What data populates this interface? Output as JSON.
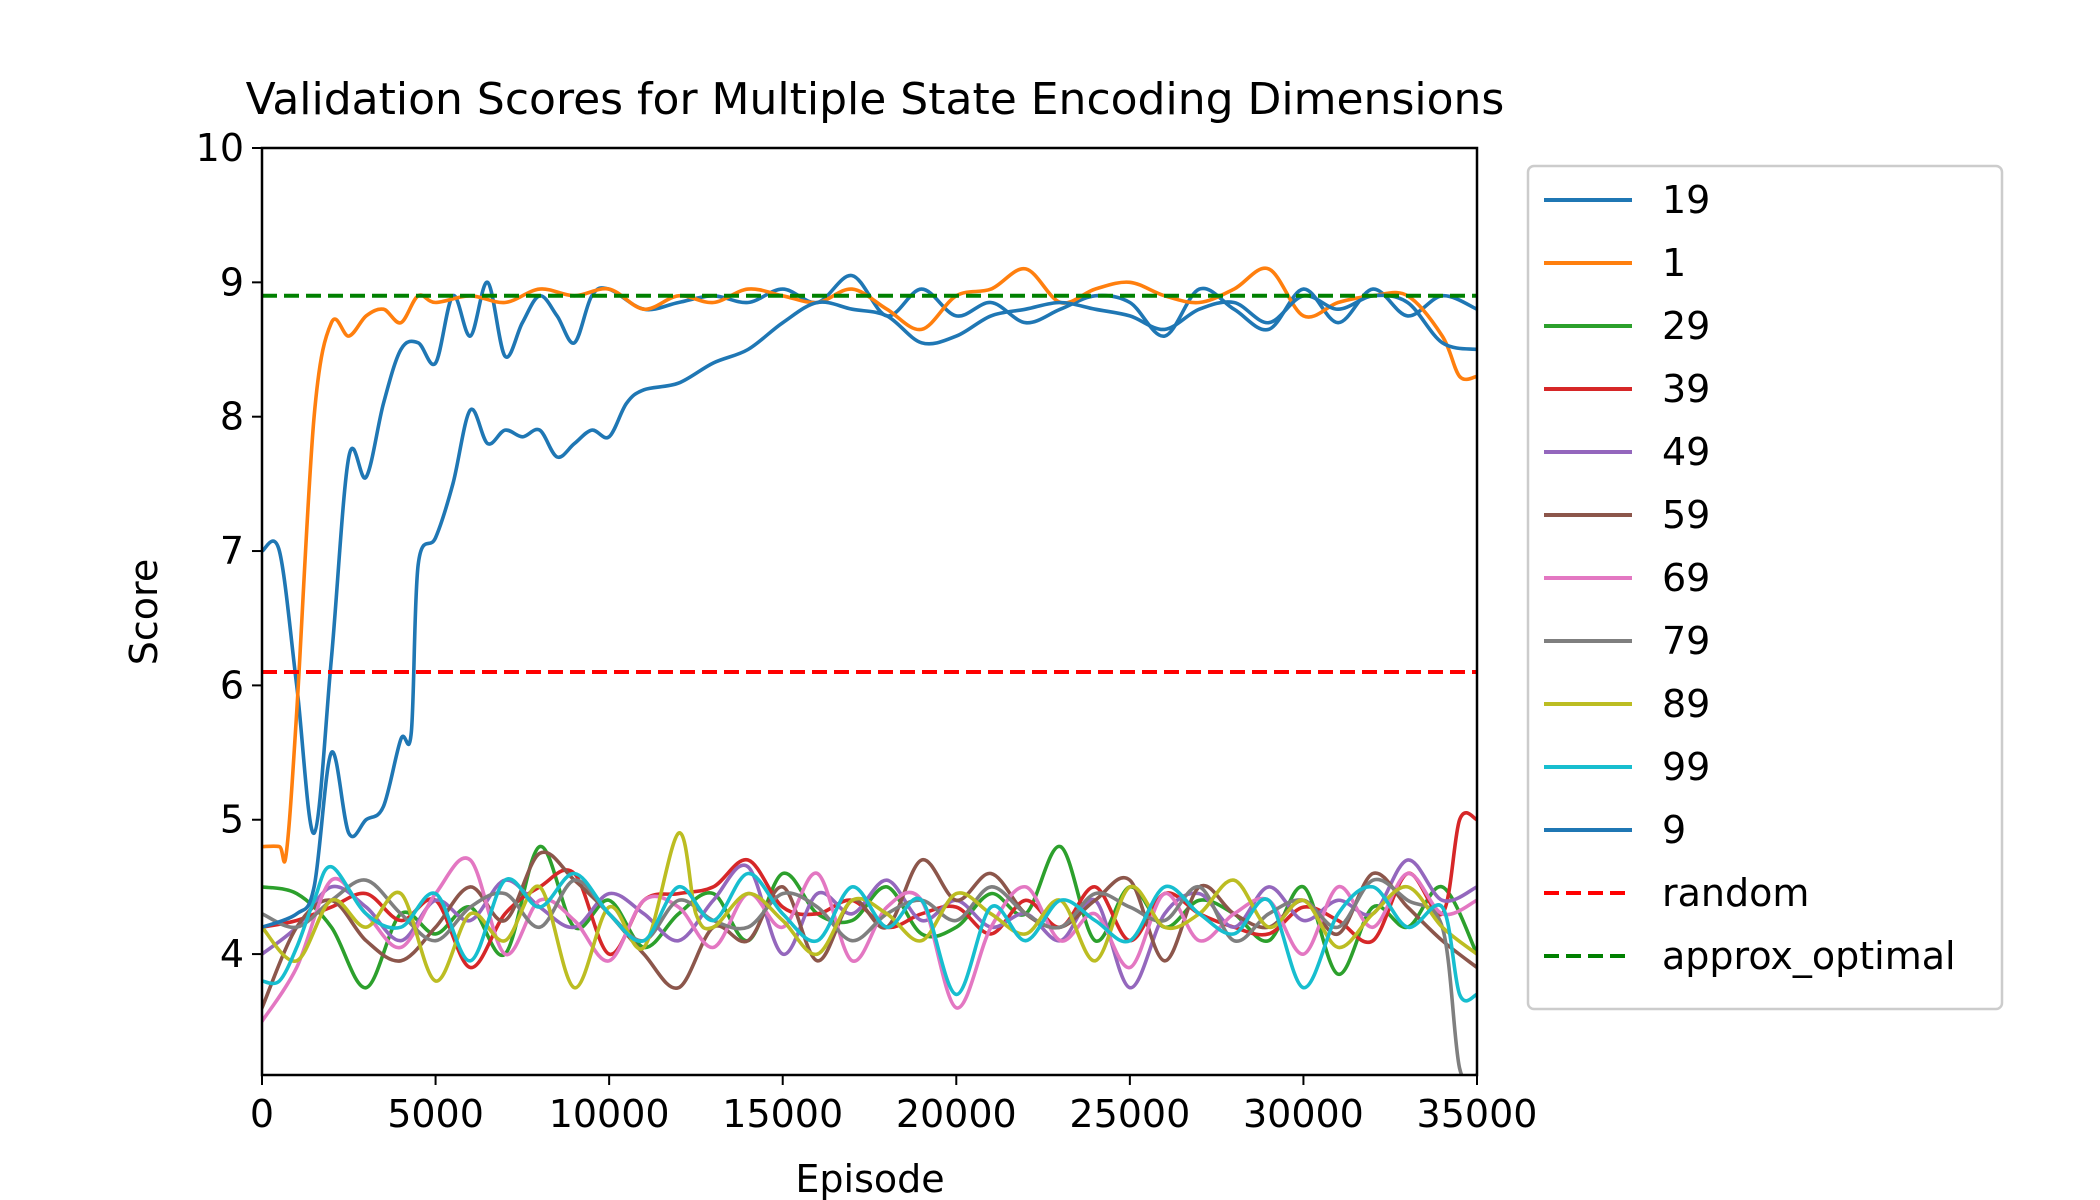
{
  "chart_data": {
    "type": "line",
    "title": "Validation Scores for Multiple State Encoding Dimensions",
    "xlabel": "Episode",
    "ylabel": "Score",
    "xlim": [
      0,
      35000
    ],
    "ylim": [
      3.1,
      10
    ],
    "xticks": [
      0,
      5000,
      10000,
      15000,
      20000,
      25000,
      30000,
      35000
    ],
    "yticks": [
      4,
      5,
      6,
      7,
      8,
      9,
      10
    ],
    "legend_position": "outside-right",
    "grid": false,
    "series": [
      {
        "name": "19",
        "color": "#1f77b4",
        "dash": false,
        "x": [
          0,
          500,
          1000,
          1500,
          2000,
          2500,
          3000,
          3500,
          4000,
          4500,
          5000,
          5500,
          6000,
          6500,
          7000,
          7500,
          8000,
          8500,
          9000,
          9500,
          10000,
          11000,
          12000,
          13000,
          14000,
          15000,
          16000,
          17000,
          18000,
          19000,
          20000,
          21000,
          22000,
          23000,
          24000,
          25000,
          26000,
          27000,
          28000,
          29000,
          30000,
          31000,
          32000,
          33000,
          34000,
          35000
        ],
        "y": [
          7.0,
          7.0,
          6.0,
          4.9,
          6.2,
          7.7,
          7.55,
          8.1,
          8.5,
          8.55,
          8.4,
          8.9,
          8.6,
          9.0,
          8.45,
          8.7,
          8.9,
          8.75,
          8.55,
          8.9,
          8.95,
          8.8,
          8.85,
          8.9,
          8.85,
          8.95,
          8.85,
          9.05,
          8.75,
          8.95,
          8.75,
          8.85,
          8.7,
          8.8,
          8.9,
          8.85,
          8.6,
          8.95,
          8.8,
          8.65,
          8.95,
          8.7,
          8.95,
          8.75,
          8.9,
          8.8
        ]
      },
      {
        "name": "1",
        "color": "#ff7f0e",
        "dash": false,
        "x": [
          0,
          500,
          700,
          1000,
          1500,
          2000,
          2500,
          3000,
          3500,
          4000,
          4500,
          5000,
          6000,
          7000,
          8000,
          9000,
          10000,
          11000,
          12000,
          13000,
          14000,
          15000,
          16000,
          17000,
          18000,
          19000,
          20000,
          21000,
          22000,
          23000,
          24000,
          25000,
          26000,
          27000,
          28000,
          29000,
          30000,
          31000,
          32000,
          33000,
          34000,
          34500,
          35000
        ],
        "y": [
          4.8,
          4.8,
          4.75,
          5.8,
          8.0,
          8.7,
          8.6,
          8.75,
          8.8,
          8.7,
          8.9,
          8.85,
          8.9,
          8.85,
          8.95,
          8.9,
          8.95,
          8.8,
          8.9,
          8.85,
          8.95,
          8.9,
          8.85,
          8.95,
          8.8,
          8.65,
          8.9,
          8.95,
          9.1,
          8.85,
          8.95,
          9.0,
          8.9,
          8.85,
          8.95,
          9.1,
          8.75,
          8.85,
          8.9,
          8.9,
          8.6,
          8.3,
          8.3
        ]
      },
      {
        "name": "29",
        "color": "#2ca02c",
        "dash": false,
        "x": [
          0,
          1000,
          2000,
          3000,
          4000,
          5000,
          6000,
          7000,
          8000,
          9000,
          10000,
          11000,
          12000,
          13000,
          14000,
          15000,
          16000,
          17000,
          18000,
          19000,
          20000,
          21000,
          22000,
          23000,
          24000,
          25000,
          26000,
          27000,
          28000,
          29000,
          30000,
          31000,
          32000,
          33000,
          34000,
          35000
        ],
        "y": [
          4.5,
          4.45,
          4.2,
          3.75,
          4.3,
          4.15,
          4.35,
          4.0,
          4.8,
          4.2,
          4.4,
          4.05,
          4.3,
          4.45,
          4.1,
          4.6,
          4.3,
          4.25,
          4.5,
          4.15,
          4.2,
          4.45,
          4.3,
          4.8,
          4.1,
          4.5,
          4.2,
          4.4,
          4.3,
          4.1,
          4.5,
          3.85,
          4.35,
          4.2,
          4.5,
          4.0
        ]
      },
      {
        "name": "39",
        "color": "#d62728",
        "dash": false,
        "x": [
          0,
          1000,
          2000,
          3000,
          4000,
          5000,
          6000,
          7000,
          8000,
          9000,
          10000,
          11000,
          12000,
          13000,
          14000,
          15000,
          16000,
          17000,
          18000,
          19000,
          20000,
          21000,
          22000,
          23000,
          24000,
          25000,
          26000,
          27000,
          28000,
          29000,
          30000,
          31000,
          32000,
          33000,
          34000,
          34500,
          35000
        ],
        "y": [
          4.2,
          4.25,
          4.35,
          4.45,
          4.25,
          4.4,
          3.9,
          4.3,
          4.5,
          4.6,
          4.0,
          4.4,
          4.45,
          4.5,
          4.7,
          4.35,
          4.3,
          4.4,
          4.2,
          4.3,
          4.35,
          4.15,
          4.4,
          4.2,
          4.5,
          4.1,
          4.45,
          4.3,
          4.2,
          4.15,
          4.35,
          4.25,
          4.1,
          4.6,
          4.3,
          5.0,
          5.0
        ]
      },
      {
        "name": "49",
        "color": "#9467bd",
        "dash": false,
        "x": [
          0,
          1000,
          2000,
          3000,
          4000,
          5000,
          6000,
          7000,
          8000,
          9000,
          10000,
          11000,
          12000,
          13000,
          14000,
          15000,
          16000,
          17000,
          18000,
          19000,
          20000,
          21000,
          22000,
          23000,
          24000,
          25000,
          26000,
          27000,
          28000,
          29000,
          30000,
          31000,
          32000,
          33000,
          34000,
          35000
        ],
        "y": [
          4.0,
          4.2,
          4.5,
          4.35,
          4.1,
          4.4,
          4.25,
          4.55,
          4.35,
          4.2,
          4.45,
          4.3,
          4.1,
          4.4,
          4.65,
          4.0,
          4.45,
          4.3,
          4.55,
          4.25,
          4.4,
          4.2,
          4.3,
          4.1,
          4.4,
          3.75,
          4.3,
          4.45,
          4.2,
          4.5,
          4.25,
          4.4,
          4.3,
          4.7,
          4.4,
          4.5
        ]
      },
      {
        "name": "59",
        "color": "#8c564b",
        "dash": false,
        "x": [
          0,
          1000,
          2000,
          3000,
          4000,
          5000,
          6000,
          7000,
          8000,
          9000,
          10000,
          11000,
          12000,
          13000,
          14000,
          15000,
          16000,
          17000,
          18000,
          19000,
          20000,
          21000,
          22000,
          23000,
          24000,
          25000,
          26000,
          27000,
          28000,
          29000,
          30000,
          31000,
          32000,
          33000,
          34000,
          35000
        ],
        "y": [
          3.6,
          4.2,
          4.4,
          4.1,
          3.95,
          4.2,
          4.5,
          4.25,
          4.75,
          4.55,
          4.3,
          4.0,
          3.75,
          4.2,
          4.1,
          4.5,
          3.95,
          4.4,
          4.2,
          4.7,
          4.4,
          4.6,
          4.3,
          4.2,
          4.4,
          4.55,
          3.95,
          4.5,
          4.3,
          4.2,
          4.4,
          4.15,
          4.6,
          4.35,
          4.1,
          3.9
        ]
      },
      {
        "name": "69",
        "color": "#e377c2",
        "dash": false,
        "x": [
          0,
          1000,
          2000,
          3000,
          4000,
          5000,
          6000,
          7000,
          8000,
          9000,
          10000,
          11000,
          12000,
          13000,
          14000,
          15000,
          16000,
          17000,
          18000,
          19000,
          20000,
          21000,
          22000,
          23000,
          24000,
          25000,
          26000,
          27000,
          28000,
          29000,
          30000,
          31000,
          32000,
          33000,
          34000,
          35000
        ],
        "y": [
          3.5,
          3.9,
          4.55,
          4.3,
          4.05,
          4.45,
          4.7,
          4.0,
          4.4,
          4.25,
          3.95,
          4.4,
          4.35,
          4.05,
          4.45,
          4.2,
          4.6,
          3.95,
          4.35,
          4.4,
          3.6,
          4.2,
          4.5,
          4.1,
          4.3,
          3.9,
          4.45,
          4.1,
          4.3,
          4.4,
          4.0,
          4.5,
          4.2,
          4.6,
          4.3,
          4.4
        ]
      },
      {
        "name": "79",
        "color": "#7f7f7f",
        "dash": false,
        "x": [
          0,
          1000,
          2000,
          3000,
          4000,
          5000,
          6000,
          7000,
          8000,
          9000,
          10000,
          11000,
          12000,
          13000,
          14000,
          15000,
          16000,
          17000,
          18000,
          19000,
          20000,
          21000,
          22000,
          23000,
          24000,
          25000,
          26000,
          27000,
          28000,
          29000,
          30000,
          31000,
          32000,
          33000,
          34000,
          34500,
          35000
        ],
        "y": [
          4.3,
          4.2,
          4.4,
          4.55,
          4.3,
          4.1,
          4.35,
          4.45,
          4.2,
          4.55,
          4.3,
          4.1,
          4.4,
          4.25,
          4.2,
          4.45,
          4.35,
          4.1,
          4.3,
          4.4,
          4.25,
          4.5,
          4.3,
          4.2,
          4.45,
          4.35,
          4.25,
          4.5,
          4.1,
          4.3,
          4.4,
          4.2,
          4.55,
          4.4,
          4.2,
          3.15,
          3.1
        ]
      },
      {
        "name": "89",
        "color": "#bcbd22",
        "dash": false,
        "x": [
          0,
          1000,
          2000,
          3000,
          4000,
          5000,
          6000,
          7000,
          8000,
          9000,
          10000,
          11000,
          12000,
          12500,
          13000,
          14000,
          15000,
          16000,
          17000,
          18000,
          19000,
          20000,
          21000,
          22000,
          23000,
          24000,
          25000,
          26000,
          27000,
          28000,
          29000,
          30000,
          31000,
          32000,
          33000,
          34000,
          35000
        ],
        "y": [
          4.2,
          3.95,
          4.4,
          4.2,
          4.45,
          3.8,
          4.3,
          4.1,
          4.5,
          3.75,
          4.35,
          4.05,
          4.9,
          4.3,
          4.2,
          4.45,
          4.25,
          4.0,
          4.4,
          4.3,
          4.1,
          4.45,
          4.3,
          4.15,
          4.4,
          3.95,
          4.5,
          4.2,
          4.3,
          4.55,
          4.2,
          4.4,
          4.05,
          4.3,
          4.5,
          4.2,
          4.0
        ]
      },
      {
        "name": "99",
        "color": "#17becf",
        "dash": false,
        "x": [
          0,
          500,
          1000,
          1500,
          2000,
          3000,
          4000,
          5000,
          6000,
          7000,
          8000,
          9000,
          10000,
          11000,
          12000,
          13000,
          14000,
          15000,
          16000,
          17000,
          18000,
          19000,
          20000,
          21000,
          22000,
          23000,
          24000,
          25000,
          26000,
          27000,
          28000,
          29000,
          30000,
          31000,
          32000,
          33000,
          34000,
          34500,
          35000
        ],
        "y": [
          3.8,
          3.8,
          4.05,
          4.4,
          4.65,
          4.3,
          4.2,
          4.45,
          3.95,
          4.55,
          4.35,
          4.6,
          4.3,
          4.1,
          4.5,
          4.25,
          4.6,
          4.3,
          4.1,
          4.5,
          4.2,
          4.4,
          3.7,
          4.35,
          4.1,
          4.4,
          4.25,
          4.1,
          4.5,
          4.3,
          4.15,
          4.4,
          3.75,
          4.3,
          4.5,
          4.2,
          4.35,
          3.7,
          3.7
        ]
      },
      {
        "name": "9",
        "color": "#1f77b4",
        "dash": false,
        "x": [
          0,
          1000,
          1500,
          2000,
          2500,
          3000,
          3500,
          4000,
          4300,
          4500,
          5000,
          5500,
          6000,
          6500,
          7000,
          7500,
          8000,
          8500,
          9000,
          9500,
          10000,
          10500,
          11000,
          12000,
          13000,
          14000,
          15000,
          16000,
          17000,
          18000,
          19000,
          20000,
          21000,
          22000,
          23000,
          24000,
          25000,
          26000,
          27000,
          28000,
          29000,
          30000,
          31000,
          32000,
          33000,
          34000,
          35000
        ],
        "y": [
          4.2,
          4.3,
          4.5,
          5.5,
          4.9,
          5.0,
          5.1,
          5.6,
          5.65,
          6.9,
          7.1,
          7.5,
          8.05,
          7.8,
          7.9,
          7.85,
          7.9,
          7.7,
          7.8,
          7.9,
          7.85,
          8.1,
          8.2,
          8.25,
          8.4,
          8.5,
          8.7,
          8.85,
          8.8,
          8.75,
          8.55,
          8.6,
          8.75,
          8.8,
          8.85,
          8.8,
          8.75,
          8.65,
          8.8,
          8.85,
          8.7,
          8.9,
          8.8,
          8.9,
          8.85,
          8.55,
          8.5
        ]
      },
      {
        "name": "random",
        "color": "#ff0000",
        "dash": true,
        "x": [
          0,
          35000
        ],
        "y": [
          6.1,
          6.1
        ]
      },
      {
        "name": "approx_optimal",
        "color": "#008000",
        "dash": true,
        "x": [
          0,
          35000
        ],
        "y": [
          8.9,
          8.9
        ]
      }
    ]
  }
}
